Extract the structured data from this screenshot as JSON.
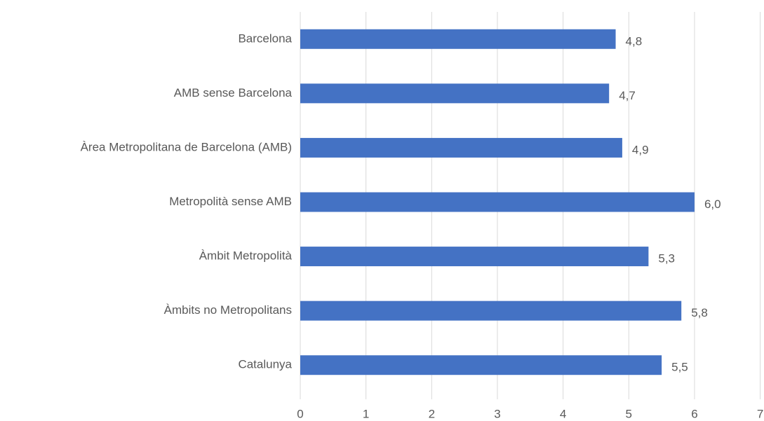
{
  "chart_data": {
    "type": "bar",
    "orientation": "horizontal",
    "categories": [
      "Barcelona",
      "AMB sense Barcelona",
      "Àrea Metropolitana de Barcelona (AMB)",
      "Metropolità sense AMB",
      "Àmbit Metropolità",
      "Àmbits no Metropolitans",
      "Catalunya"
    ],
    "values": [
      4.8,
      4.7,
      4.9,
      6.0,
      5.3,
      5.8,
      5.5
    ],
    "value_labels": [
      "4,8",
      "4,7",
      "4,9",
      "6,0",
      "5,3",
      "5,8",
      "5,5"
    ],
    "color": "#4472c4",
    "xlim": [
      0,
      7
    ],
    "xticks": [
      0,
      1,
      2,
      3,
      4,
      5,
      6,
      7
    ],
    "grid": true
  }
}
